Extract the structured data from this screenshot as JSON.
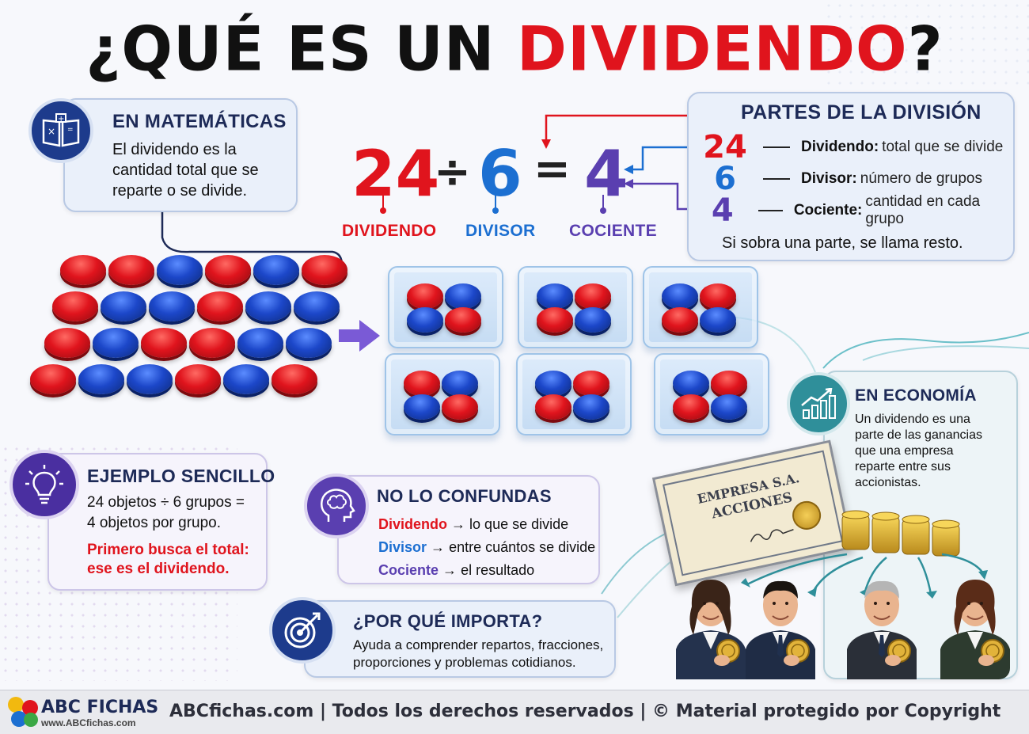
{
  "title": {
    "part1": "¿QUÉ ES UN ",
    "part2": "DIVIDENDO",
    "part3": "?"
  },
  "colors": {
    "red": "#e0141d",
    "blue": "#1c6fd1",
    "purple": "#5a3fb0",
    "navy": "#1d2a57",
    "teal": "#2f8f9a"
  },
  "math_card": {
    "heading": "EN MATEMÁTICAS",
    "text": "El dividendo es la cantidad total que se reparte o se divide.",
    "icon": "book-formulas-icon"
  },
  "equation": {
    "dividend": "24",
    "divide_sign": "÷",
    "divisor": "6",
    "equals_sign": "=",
    "quotient": "4",
    "labels": {
      "dividend": "DIVIDENDO",
      "divisor": "DIVISOR",
      "quotient": "COCIENTE"
    }
  },
  "parts_card": {
    "heading": "PARTES DE LA DIVISIÓN",
    "rows": [
      {
        "num": "24",
        "term": "Dividendo:",
        "desc": "total que se divide"
      },
      {
        "num": "6",
        "term": "Divisor:",
        "desc": "número de grupos"
      },
      {
        "num": "4",
        "term": "Cociente:",
        "desc": "cantidad en cada grupo"
      }
    ],
    "note": "Si sobra una parte, se llama resto."
  },
  "example_card": {
    "heading": "EJEMPLO SENCILLO",
    "line1": "24 objetos ÷ 6 grupos =",
    "line2": "4 objetos por grupo.",
    "tip1": "Primero busca el total:",
    "tip2": "ese es el dividendo.",
    "icon": "lightbulb-icon"
  },
  "confuse_card": {
    "heading": "NO LO CONFUNDAS",
    "rows": [
      {
        "term": "Dividendo",
        "arrow": "→",
        "desc": "lo que se divide"
      },
      {
        "term": "Divisor",
        "arrow": "→",
        "desc": "entre cuántos se divide"
      },
      {
        "term": "Cociente",
        "arrow": "→",
        "desc": "el resultado"
      }
    ],
    "icon": "brain-head-icon"
  },
  "why_card": {
    "heading": "¿POR QUÉ IMPORTA?",
    "line1": "Ayuda a comprender repartos, fracciones,",
    "line2": "proporciones y problemas cotidianos.",
    "icon": "target-icon"
  },
  "econ_card": {
    "heading": "EN ECONOMÍA",
    "lines": [
      "Un dividendo es una",
      "parte de las ganancias",
      "que una empresa",
      "reparte entre sus",
      "accionistas."
    ],
    "icon": "growth-chart-icon"
  },
  "certificate": {
    "line1": "EMPRESA S.A.",
    "line2": "ACCIONES"
  },
  "counters": {
    "rows": [
      [
        "red",
        "red",
        "blue",
        "red",
        "blue",
        "red"
      ],
      [
        "red",
        "blue",
        "blue",
        "red",
        "blue",
        "blue"
      ],
      [
        "red",
        "blue",
        "red",
        "red",
        "blue",
        "blue"
      ],
      [
        "red",
        "blue",
        "blue",
        "red",
        "blue",
        "red"
      ]
    ]
  },
  "trays": [
    [
      "red",
      "blue",
      "blue",
      "red"
    ],
    [
      "blue",
      "red",
      "red",
      "blue"
    ],
    [
      "blue",
      "red",
      "red",
      "blue"
    ],
    [
      "red",
      "blue",
      "blue",
      "red"
    ],
    [
      "blue",
      "red",
      "red",
      "blue"
    ],
    [
      "blue",
      "red",
      "red",
      "blue"
    ]
  ],
  "footer": {
    "logo": "ABC FICHAS",
    "url": "www.ABCfichas.com",
    "text": "ABCfichas.com | Todos los derechos reservados | © Material protegido por Copyright"
  }
}
